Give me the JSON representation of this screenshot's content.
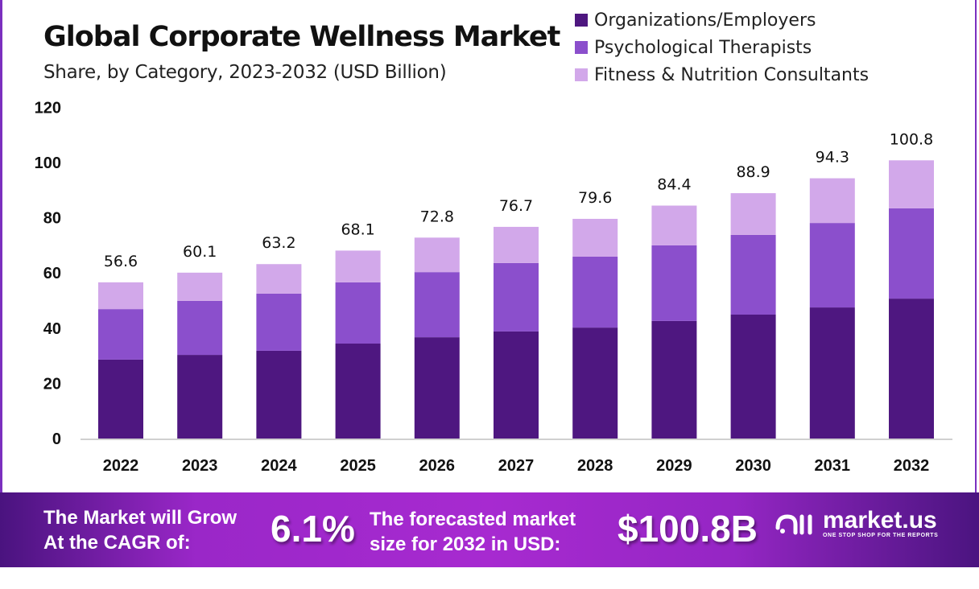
{
  "chart_data": {
    "type": "bar",
    "stacked": true,
    "title": "Global Corporate Wellness Market",
    "subtitle": "Share, by Category, 2023-2032 (USD Billion)",
    "xlabel": "",
    "ylabel": "",
    "ylim": [
      0,
      120
    ],
    "yticks": [
      "0",
      "20",
      "40",
      "60",
      "80",
      "100",
      "120"
    ],
    "categories": [
      "2022",
      "2023",
      "2024",
      "2025",
      "2026",
      "2027",
      "2028",
      "2029",
      "2030",
      "2031",
      "2032"
    ],
    "series": [
      {
        "name": "Organizations/Employers",
        "color": "#4e1780",
        "values": [
          28.6,
          30.3,
          31.8,
          34.4,
          36.7,
          38.8,
          40.2,
          42.6,
          44.9,
          47.5,
          50.7
        ]
      },
      {
        "name": "Psychological Therapists",
        "color": "#8b4fcc",
        "values": [
          18.3,
          19.6,
          20.7,
          22.2,
          23.6,
          24.8,
          25.7,
          27.4,
          28.9,
          30.6,
          32.7
        ]
      },
      {
        "name": "Fitness & Nutrition Consultants",
        "color": "#d2a8ea",
        "values": [
          9.7,
          10.2,
          10.7,
          11.5,
          12.5,
          13.1,
          13.7,
          14.4,
          15.1,
          16.2,
          17.4
        ]
      }
    ],
    "totals": [
      "56.6",
      "60.1",
      "63.2",
      "68.1",
      "72.8",
      "76.7",
      "79.6",
      "84.4",
      "88.9",
      "94.3",
      "100.8"
    ],
    "legend_position": "top-right",
    "grid": false
  },
  "footer": {
    "cagr_label_1": "The Market will Grow",
    "cagr_label_2": "At the CAGR of:",
    "cagr_value": "6.1%",
    "forecast_label_1": "The forecasted market",
    "forecast_label_2": "size for 2032 in USD:",
    "forecast_value": "$100.8B",
    "brand_name": "market.us",
    "brand_tagline": "ONE STOP SHOP FOR THE REPORTS"
  }
}
